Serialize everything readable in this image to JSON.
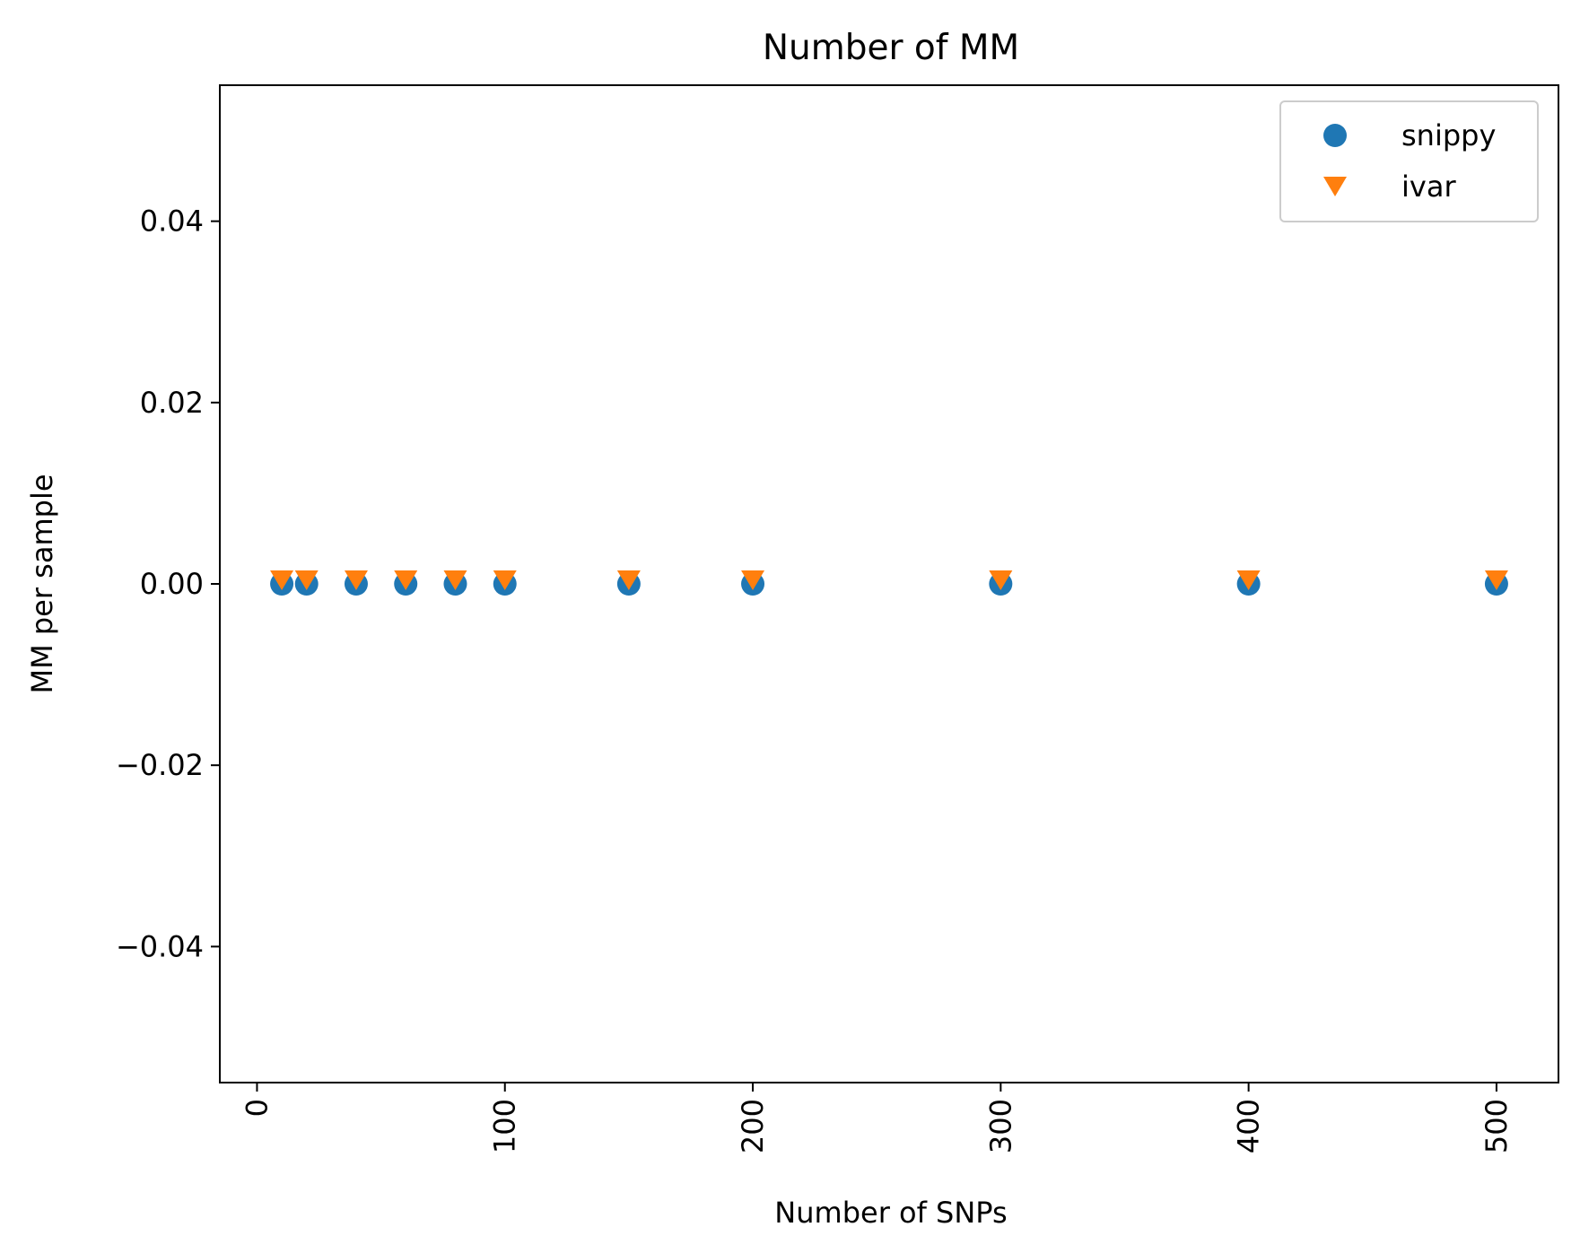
{
  "chart_data": {
    "type": "scatter",
    "title": "Number of MM",
    "xlabel": "Number of SNPs",
    "ylabel": "MM per sample",
    "xlim": [
      -15,
      525
    ],
    "ylim": [
      -0.055,
      0.055
    ],
    "x_ticks": [
      0,
      100,
      200,
      300,
      400,
      500
    ],
    "x_tick_labels": [
      "0",
      "100",
      "200",
      "300",
      "400",
      "500"
    ],
    "x_tick_rotation": "vertical",
    "y_ticks": [
      -0.04,
      -0.02,
      0.0,
      0.02,
      0.04
    ],
    "y_tick_labels": [
      "−0.04",
      "−0.02",
      "0.00",
      "0.02",
      "0.04"
    ],
    "grid": false,
    "legend_position": "top-right",
    "series": [
      {
        "name": "snippy",
        "marker": "circle",
        "color": "#1f77b4",
        "x": [
          10,
          20,
          40,
          60,
          80,
          100,
          150,
          200,
          300,
          400,
          500
        ],
        "y": [
          0,
          0,
          0,
          0,
          0,
          0,
          0,
          0,
          0,
          0,
          0
        ]
      },
      {
        "name": "ivar",
        "marker": "triangle-down",
        "color": "#ff7f0e",
        "x": [
          10,
          20,
          40,
          60,
          80,
          100,
          150,
          200,
          300,
          400,
          500
        ],
        "y": [
          0,
          0,
          0,
          0,
          0,
          0,
          0,
          0,
          0,
          0,
          0
        ]
      }
    ]
  }
}
